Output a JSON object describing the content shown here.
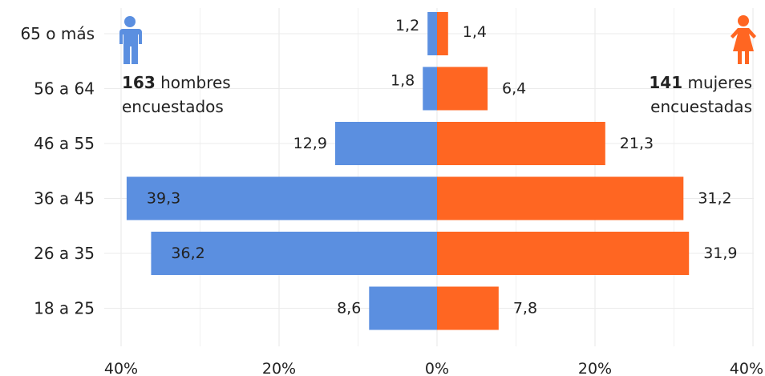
{
  "colors": {
    "men": "#5b8fe0",
    "women": "#ff6622",
    "grid": "#ebebeb",
    "text": "#222222"
  },
  "legend": {
    "men": {
      "icon": "man-icon",
      "count": "163",
      "line1": "hombres",
      "line2": "encuestados"
    },
    "women": {
      "icon": "woman-icon",
      "count": "141",
      "line1": "mujeres",
      "line2": "encuestadas"
    }
  },
  "chart_data": {
    "type": "bar",
    "orientation": "horizontal",
    "layout": "population-pyramid",
    "categories": [
      "65 o más",
      "56 a 64",
      "46 a 55",
      "36 a 45",
      "26 a 35",
      "18 a 25"
    ],
    "series": [
      {
        "values": [
          1.2,
          1.8,
          12.9,
          39.3,
          36.2,
          8.6
        ],
        "labels": [
          "1,2",
          "1,8",
          "12,9",
          "39,3",
          "36,2",
          "8,6"
        ]
      },
      {
        "values": [
          1.4,
          6.4,
          21.3,
          31.2,
          31.9,
          7.8
        ],
        "labels": [
          "1,4",
          "6,4",
          "21,3",
          "31,2",
          "31,9",
          "7,8"
        ]
      }
    ],
    "xlim": [
      -40,
      40
    ],
    "xticks": [
      -40,
      -20,
      0,
      20,
      40
    ],
    "xtick_labels": [
      "40%",
      "20%",
      "0%",
      "20%",
      "40%"
    ],
    "grid": true
  }
}
